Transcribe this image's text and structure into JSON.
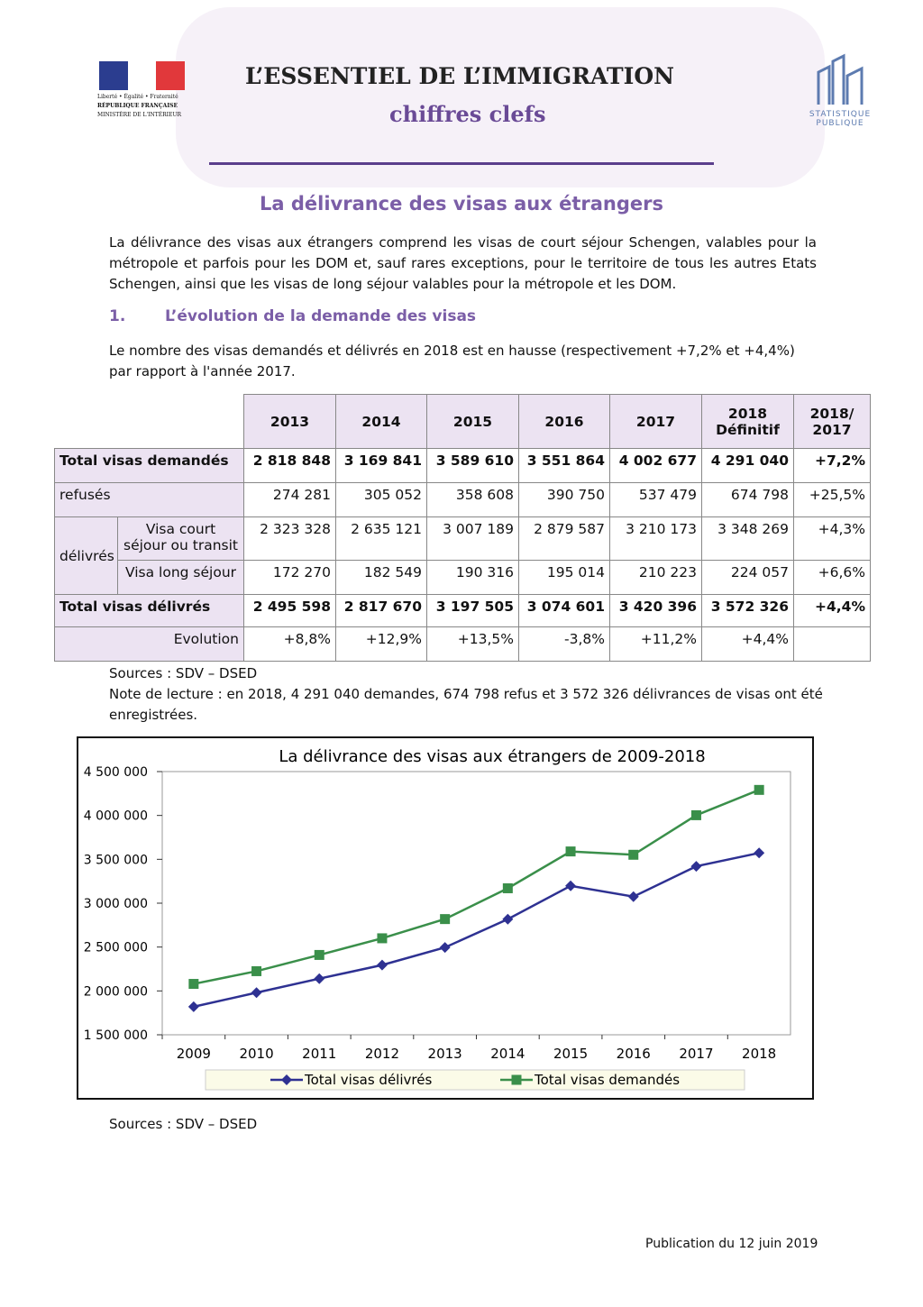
{
  "header": {
    "logo_left": [
      "Liberté • Égalité • Fraternité",
      "RÉPUBLIQUE FRANÇAISE",
      "MINISTÈRE DE L'INTÉRIEUR"
    ],
    "title": "L’ESSENTIEL DE L’IMMIGRATION",
    "subtitle": "chiffres clefs",
    "logo_right": "STATISTIQUE PUBLIQUE"
  },
  "heading": "La délivrance des visas aux étrangers",
  "intro": "La délivrance des visas aux étrangers comprend les visas de court séjour Schengen, valables pour la métropole et parfois pour les DOM et, sauf rares exceptions, pour le territoire de tous les autres Etats Schengen, ainsi que les visas de long séjour valables pour la métropole et les DOM.",
  "section": {
    "number": "1.",
    "title": "L’évolution de la demande des visas"
  },
  "section_text": "Le nombre des visas demandés et délivrés en 2018 est en hausse (respectivement +7,2% et +4,4%) par rapport à l'année 2017.",
  "table": {
    "columns": [
      "2013",
      "2014",
      "2015",
      "2016",
      "2017",
      "2018 Définitif",
      "2018/ 2017"
    ],
    "group": "délivrés",
    "rows": [
      {
        "label": "Total visas demandés",
        "cells": [
          "2 818 848",
          "3 169 841",
          "3 589 610",
          "3 551 864",
          "4 002 677",
          "4 291 040",
          "+7,2%"
        ]
      },
      {
        "label": "refusés",
        "cells": [
          "274 281",
          "305 052",
          "358 608",
          "390 750",
          "537 479",
          "674 798",
          "+25,5%"
        ]
      },
      {
        "label": "Visa court séjour ou transit",
        "cells": [
          "2 323 328",
          "2 635 121",
          "3 007 189",
          "2 879 587",
          "3 210 173",
          "3 348 269",
          "+4,3%"
        ]
      },
      {
        "label": "Visa long séjour",
        "cells": [
          "172 270",
          "182 549",
          "190 316",
          "195 014",
          "210 223",
          "224 057",
          "+6,6%"
        ]
      },
      {
        "label": "Total visas délivrés",
        "cells": [
          "2 495 598",
          "2 817 670",
          "3 197 505",
          "3 074 601",
          "3 420 396",
          "3 572 326",
          "+4,4%"
        ]
      },
      {
        "label": "Evolution",
        "cells": [
          "+8,8%",
          "+12,9%",
          "+13,5%",
          "-3,8%",
          "+11,2%",
          "+4,4%"
        ]
      }
    ]
  },
  "sources_1": "Sources : SDV – DSED",
  "note": "Note de lecture : en 2018, 4 291 040 demandes, 674 798 refus et 3 572 326 délivrances de visas ont été enregistrées.",
  "chart_data": {
    "type": "line",
    "title": "La délivrance des visas aux étrangers de 2009-2018",
    "categories": [
      "2009",
      "2010",
      "2011",
      "2012",
      "2013",
      "2014",
      "2015",
      "2016",
      "2017",
      "2018"
    ],
    "series": [
      {
        "name": "Total visas délivrés",
        "color": "#2e3192",
        "marker": "diamond",
        "values": [
          1820000,
          1980000,
          2140000,
          2295000,
          2495598,
          2817670,
          3197505,
          3074601,
          3420396,
          3572326
        ]
      },
      {
        "name": "Total visas demandés",
        "color": "#3a8f4a",
        "marker": "square",
        "values": [
          2080000,
          2225000,
          2410000,
          2600000,
          2818848,
          3169841,
          3589610,
          3551864,
          4002677,
          4291040
        ]
      }
    ],
    "ylim": [
      1500000,
      4500000
    ],
    "yticks": [
      {
        "value": 1500000,
        "label": "1 500 000"
      },
      {
        "value": 2000000,
        "label": "2 000 000"
      },
      {
        "value": 2500000,
        "label": "2 500 000"
      },
      {
        "value": 3000000,
        "label": "3 000 000"
      },
      {
        "value": 3500000,
        "label": "3 500 000"
      },
      {
        "value": 4000000,
        "label": "4 000 000"
      },
      {
        "value": 4500000,
        "label": "4 500 000"
      }
    ],
    "grid": false,
    "legend": "bottom"
  },
  "sources_2": "Sources : SDV – DSED",
  "footer": "Publication du 12 juin 2019"
}
